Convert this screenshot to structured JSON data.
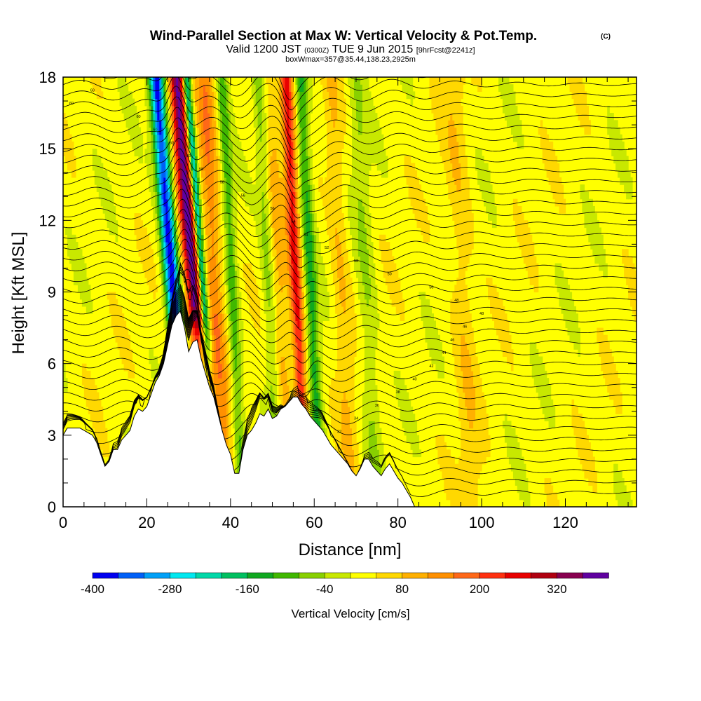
{
  "chart_data": {
    "type": "heatmap",
    "title": "Wind-Parallel Section at Max W: Vertical Velocity & Pot.Temp.",
    "title_mark": "(C)",
    "subtitle_main": "Valid 1200 JST",
    "subtitle_utc": "(0300Z)",
    "subtitle_date": "TUE 9 Jun 2015",
    "subtitle_fcst": "[9hrFcst@2241z]",
    "subtitle_box": "boxWmax=357@35.44,138.23,2925m",
    "xlabel": "Distance [nm]",
    "ylabel": "Height [Kft MSL]",
    "xlim": [
      0,
      137
    ],
    "ylim": [
      0,
      18
    ],
    "x_ticks": [
      0,
      20,
      40,
      60,
      80,
      100,
      120
    ],
    "y_ticks": [
      0,
      3,
      6,
      9,
      12,
      15,
      18
    ],
    "colorbar": {
      "label": "Vertical Velocity [cm/s]",
      "range": [
        -400,
        400
      ],
      "tick_labels": [
        "-400",
        "-280",
        "-160",
        "-40",
        "80",
        "200",
        "320"
      ],
      "tick_values": [
        -400,
        -280,
        -160,
        -40,
        80,
        200,
        320
      ],
      "colors": [
        "#0000f0",
        "#0060f8",
        "#00a0f8",
        "#00e8f0",
        "#00d8a8",
        "#00c060",
        "#10a820",
        "#40b800",
        "#88d000",
        "#c8e800",
        "#ffff00",
        "#ffd800",
        "#ffb000",
        "#ff9000",
        "#ff6818",
        "#ff3010",
        "#e80000",
        "#b00010",
        "#880050",
        "#6000a0"
      ]
    },
    "terrain": [
      [
        0,
        3.0
      ],
      [
        1,
        3.3
      ],
      [
        4,
        3.3
      ],
      [
        7,
        3.0
      ],
      [
        8,
        2.7
      ],
      [
        9,
        2.2
      ],
      [
        10,
        1.7
      ],
      [
        11,
        1.9
      ],
      [
        12,
        2.4
      ],
      [
        13,
        2.4
      ],
      [
        14,
        2.8
      ],
      [
        15,
        3.0
      ],
      [
        16,
        3.2
      ],
      [
        17,
        3.8
      ],
      [
        18,
        4.1
      ],
      [
        19,
        4.0
      ],
      [
        20,
        4.2
      ],
      [
        21,
        4.7
      ],
      [
        22,
        5.2
      ],
      [
        23,
        5.5
      ],
      [
        24,
        6.0
      ],
      [
        25,
        6.8
      ],
      [
        26,
        7.6
      ],
      [
        27,
        8.0
      ],
      [
        28,
        8.2
      ],
      [
        29,
        7.5
      ],
      [
        30,
        6.5
      ],
      [
        31,
        6.9
      ],
      [
        32,
        7.0
      ],
      [
        33,
        6.2
      ],
      [
        34,
        5.6
      ],
      [
        35,
        5.0
      ],
      [
        36,
        4.6
      ],
      [
        37,
        3.9
      ],
      [
        38,
        3.2
      ],
      [
        39,
        2.6
      ],
      [
        40,
        2.2
      ],
      [
        41,
        1.4
      ],
      [
        42,
        1.4
      ],
      [
        43,
        2.4
      ],
      [
        44,
        3.0
      ],
      [
        45,
        3.2
      ],
      [
        46,
        3.5
      ],
      [
        47,
        3.9
      ],
      [
        48,
        3.8
      ],
      [
        49,
        4.1
      ],
      [
        50,
        3.7
      ],
      [
        51,
        3.8
      ],
      [
        52,
        4.1
      ],
      [
        53,
        4.2
      ],
      [
        54,
        4.4
      ],
      [
        55,
        4.6
      ],
      [
        56,
        4.6
      ],
      [
        57,
        4.3
      ],
      [
        58,
        4.1
      ],
      [
        59,
        3.8
      ],
      [
        60,
        3.6
      ],
      [
        61,
        3.4
      ],
      [
        62,
        3.2
      ],
      [
        63,
        2.9
      ],
      [
        64,
        2.6
      ],
      [
        65,
        2.4
      ],
      [
        66,
        2.2
      ],
      [
        67,
        2.0
      ],
      [
        68,
        1.8
      ],
      [
        69,
        1.5
      ],
      [
        70,
        1.3
      ],
      [
        71,
        1.6
      ],
      [
        72,
        2.0
      ],
      [
        73,
        2.0
      ],
      [
        74,
        1.7
      ],
      [
        75,
        1.5
      ],
      [
        76,
        1.3
      ],
      [
        77,
        1.6
      ],
      [
        78,
        1.8
      ],
      [
        79,
        1.5
      ],
      [
        80,
        1.2
      ],
      [
        81,
        1.0
      ],
      [
        82,
        0.7
      ],
      [
        83,
        0.4
      ],
      [
        84,
        0.0
      ]
    ],
    "updraft_bands": [
      {
        "x0": 29.2,
        "x1": 35.0,
        "peak": 357
      },
      {
        "x0": 33.6,
        "x1": 40.0,
        "peak": 130
      },
      {
        "x0": 54.0,
        "x1": 58.5,
        "peak": 230
      },
      {
        "x0": 50.0,
        "x1": 55.0,
        "peak": 70
      },
      {
        "x0": 64.0,
        "x1": 70.0,
        "peak": 60
      },
      {
        "x0": 92.0,
        "x1": 100.0,
        "peak": 50
      }
    ],
    "downdraft_bands": [
      {
        "x0": 24.5,
        "x1": 29.8,
        "peak": -400
      },
      {
        "x0": 33.0,
        "x1": 35.8,
        "peak": -320
      },
      {
        "x0": 39.0,
        "x1": 43.0,
        "peak": -120
      },
      {
        "x0": 47.5,
        "x1": 51.5,
        "peak": -70
      },
      {
        "x0": 57.5,
        "x1": 62.0,
        "peak": -150
      },
      {
        "x0": 70.0,
        "x1": 76.0,
        "peak": -60
      }
    ],
    "theta_labels": [
      "60",
      "60",
      "60",
      "60",
      "60",
      "60",
      "58",
      "58",
      "56",
      "56",
      "54",
      "54",
      "52",
      "52",
      "50",
      "50",
      "48",
      "48",
      "46",
      "46",
      "44",
      "42",
      "40",
      "38",
      "36",
      "34",
      "32",
      "30"
    ]
  }
}
